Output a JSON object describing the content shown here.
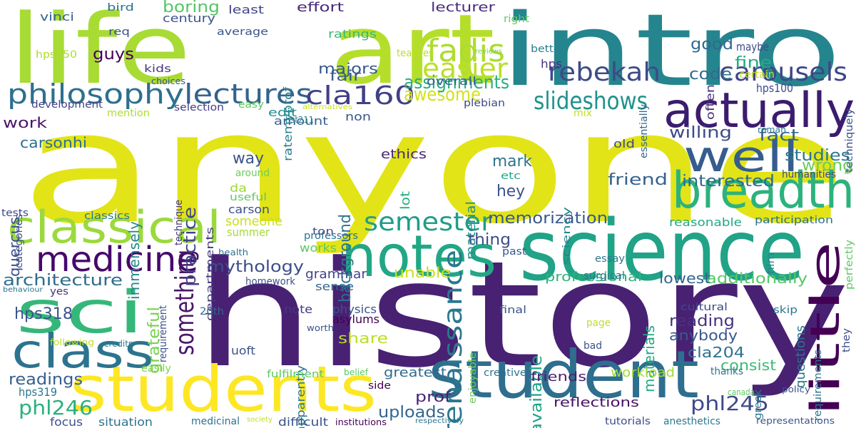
{
  "word_cloud": {
    "words": [
      {
        "text": "anyone",
        "color": "#e2e418"
      },
      {
        "text": "history",
        "color": "#482173"
      },
      {
        "text": "intro",
        "color": "#25858e"
      },
      {
        "text": "art",
        "color": "#b5de2b"
      },
      {
        "text": "life",
        "color": "#a8db34"
      },
      {
        "text": "science",
        "color": "#20a386"
      },
      {
        "text": "student",
        "color": "#2e6e8e"
      },
      {
        "text": "students",
        "color": "#fde725"
      },
      {
        "text": "sci",
        "color": "#35b779"
      },
      {
        "text": "notes",
        "color": "#22a785"
      },
      {
        "text": "classical",
        "color": "#9bd93c"
      },
      {
        "text": "actually",
        "color": "#3b1c6e"
      },
      {
        "text": "breadth",
        "color": "#2db27d"
      },
      {
        "text": "class",
        "color": "#2c738e"
      },
      {
        "text": "well",
        "color": "#365d8d"
      },
      {
        "text": "little",
        "color": "#440154"
      },
      {
        "text": "medicine",
        "color": "#46086b"
      },
      {
        "text": "philosophy",
        "color": "#2d708e"
      },
      {
        "text": "lectures",
        "color": "#33638d"
      },
      {
        "text": "cla160",
        "color": "#424086"
      },
      {
        "text": "renaissance",
        "color": "#2a788e"
      },
      {
        "text": "fadis",
        "color": "#addc30"
      },
      {
        "text": "easier",
        "color": "#bddf26"
      },
      {
        "text": "rebekah",
        "color": "#3e4a89"
      },
      {
        "text": "carousels",
        "color": "#3f4788"
      },
      {
        "text": "slideshows",
        "color": "#20928c"
      },
      {
        "text": "semester",
        "color": "#1f9e89"
      },
      {
        "text": "something",
        "color": "#481769"
      },
      {
        "text": "awesome",
        "color": "#d2e21b"
      },
      {
        "text": "assignments",
        "color": "#29af7f"
      },
      {
        "text": "phl246",
        "color": "#2ab07f"
      },
      {
        "text": "phl245",
        "color": "#3e4989"
      },
      {
        "text": "hps318",
        "color": "#3a548c"
      },
      {
        "text": "readings",
        "color": "#355f8d"
      },
      {
        "text": "architecture",
        "color": "#2e6d8e"
      },
      {
        "text": "mythology",
        "color": "#3d4e8a"
      },
      {
        "text": "practice",
        "color": "#414487"
      },
      {
        "text": "grateful",
        "color": "#7ad151"
      },
      {
        "text": "background",
        "color": "#2c728e"
      },
      {
        "text": "memorization",
        "color": "#38598c"
      },
      {
        "text": "studies",
        "color": "#2b758e"
      },
      {
        "text": "interested",
        "color": "#31688e"
      },
      {
        "text": "wrong",
        "color": "#6ccd5a"
      },
      {
        "text": "friend",
        "color": "#33628d"
      },
      {
        "text": "willing",
        "color": "#3e4c8a"
      },
      {
        "text": "fact",
        "color": "#33638d"
      },
      {
        "text": "good",
        "color": "#31688e"
      },
      {
        "text": "fine",
        "color": "#25ac82"
      },
      {
        "text": "code",
        "color": "#2f6c8e"
      },
      {
        "text": "mark",
        "color": "#2b748e"
      },
      {
        "text": "hey",
        "color": "#3b528b"
      },
      {
        "text": "fair",
        "color": "#355e8d"
      },
      {
        "text": "majors",
        "color": "#38588c"
      },
      {
        "text": "guys",
        "color": "#440154"
      },
      {
        "text": "boring",
        "color": "#54c568"
      },
      {
        "text": "work",
        "color": "#481668"
      },
      {
        "text": "carsonhi",
        "color": "#2d708e"
      },
      {
        "text": "quercus",
        "color": "#3d4d8a"
      },
      {
        "text": "immensely",
        "color": "#24878e"
      },
      {
        "text": "way",
        "color": "#3b528b"
      },
      {
        "text": "thing",
        "color": "#3e4c8a"
      },
      {
        "text": "unable",
        "color": "#cae11f"
      },
      {
        "text": "share",
        "color": "#bade28"
      },
      {
        "text": "reading",
        "color": "#46337f"
      },
      {
        "text": "anybody",
        "color": "#38588c"
      },
      {
        "text": "available",
        "color": "#1fa188"
      },
      {
        "text": "materials",
        "color": "#22a884"
      },
      {
        "text": "additionally",
        "color": "#56c667"
      },
      {
        "text": "lowest",
        "color": "#32658e"
      },
      {
        "text": "professional",
        "color": "#2db27d"
      },
      {
        "text": "cla204",
        "color": "#2c728e"
      },
      {
        "text": "consist",
        "color": "#3aba76"
      },
      {
        "text": "questions",
        "color": "#2a768e"
      },
      {
        "text": "uploads",
        "color": "#31668e"
      },
      {
        "text": "prof",
        "color": "#482374"
      },
      {
        "text": "greatest",
        "color": "#2f6c8e"
      },
      {
        "text": "reflections",
        "color": "#471164"
      },
      {
        "text": "workload",
        "color": "#a2da37"
      },
      {
        "text": "friends",
        "color": "#481d6f"
      },
      {
        "text": "ethics",
        "color": "#482878"
      },
      {
        "text": "material",
        "color": "#228c8d"
      },
      {
        "text": "lot",
        "color": "#25ac82"
      },
      {
        "text": "ratings",
        "color": "#38b977"
      },
      {
        "text": "overall",
        "color": "#34608d"
      },
      {
        "text": "non",
        "color": "#3b528b"
      },
      {
        "text": "edit",
        "color": "#228d8d"
      },
      {
        "text": "amount",
        "color": "#35608d"
      },
      {
        "text": "plebian",
        "color": "#3e4a89"
      },
      {
        "text": "effort",
        "color": "#482979"
      },
      {
        "text": "lecturer",
        "color": "#472d7b"
      },
      {
        "text": "century",
        "color": "#3a548c"
      },
      {
        "text": "least",
        "color": "#404688"
      },
      {
        "text": "average",
        "color": "#39558c"
      },
      {
        "text": "ratemyprof",
        "color": "#26818e"
      },
      {
        "text": "vinci",
        "color": "#33638d"
      },
      {
        "text": "bird",
        "color": "#2d708e"
      },
      {
        "text": "req",
        "color": "#3b528b"
      },
      {
        "text": "hps250",
        "color": "#addc30"
      },
      {
        "text": "kids",
        "color": "#453882"
      },
      {
        "text": "choices",
        "color": "#3b528b"
      },
      {
        "text": "development",
        "color": "#414487"
      },
      {
        "text": "mention",
        "color": "#addc30"
      },
      {
        "text": "selection",
        "color": "#423f85"
      },
      {
        "text": "easy",
        "color": "#5ec962"
      },
      {
        "text": "alternatives",
        "color": "#cde11d"
      },
      {
        "text": "teaches",
        "color": "#bddf26"
      },
      {
        "text": "reviews",
        "color": "#7fd34e"
      },
      {
        "text": "better",
        "color": "#26818e"
      },
      {
        "text": "right",
        "color": "#5ec962"
      },
      {
        "text": "hps",
        "color": "#46337f"
      },
      {
        "text": "maybe",
        "color": "#3e4c8a"
      },
      {
        "text": "often",
        "color": "#472d7b"
      },
      {
        "text": "essentially",
        "color": "#31688e"
      },
      {
        "text": "hps100",
        "color": "#3e4a89"
      },
      {
        "text": "certain",
        "color": "#c2df23"
      },
      {
        "text": "techniquely",
        "color": "#3a548c"
      },
      {
        "text": "roman",
        "color": "#2a788e"
      },
      {
        "text": "old",
        "color": "#3e4989"
      },
      {
        "text": "mix",
        "color": "#bddf26"
      },
      {
        "text": "etc",
        "color": "#22a884"
      },
      {
        "text": "sciency",
        "color": "#25848e"
      },
      {
        "text": "humanities",
        "color": "#3f4889"
      },
      {
        "text": "hst211",
        "color": "#26828e"
      },
      {
        "text": "carson",
        "color": "#3d4e8a"
      },
      {
        "text": "da",
        "color": "#9bd93c"
      },
      {
        "text": "useful",
        "color": "#5ec962"
      },
      {
        "text": "someone",
        "color": "#c8e020"
      },
      {
        "text": "summer",
        "color": "#a5db36"
      },
      {
        "text": "around",
        "color": "#6ccd5a"
      },
      {
        "text": "departments",
        "color": "#453781"
      },
      {
        "text": "technique",
        "color": "#453882"
      },
      {
        "text": "categories",
        "color": "#3b528b"
      },
      {
        "text": "tests",
        "color": "#3e4c8a"
      },
      {
        "text": "classics",
        "color": "#2a788e"
      },
      {
        "text": "ton",
        "color": "#3e4c8a"
      },
      {
        "text": "works",
        "color": "#5ec962"
      },
      {
        "text": "professors",
        "color": "#2d708e"
      },
      {
        "text": "reasonable",
        "color": "#22a884"
      },
      {
        "text": "participation",
        "color": "#2c728e"
      },
      {
        "text": "representations",
        "color": "#3b528b"
      },
      {
        "text": "requirements",
        "color": "#2c728e"
      },
      {
        "text": "they",
        "color": "#3e4c8a"
      },
      {
        "text": "perfectly",
        "color": "#5ec962"
      },
      {
        "text": "film",
        "color": "#25848e"
      },
      {
        "text": "essay",
        "color": "#2a788e"
      },
      {
        "text": "surgical",
        "color": "#2a788e"
      },
      {
        "text": "past",
        "color": "#39558c"
      },
      {
        "text": "health",
        "color": "#2c728e"
      },
      {
        "text": "behaviour",
        "color": "#2c728e"
      },
      {
        "text": "yes",
        "color": "#46337f"
      },
      {
        "text": "homework",
        "color": "#3b528b"
      },
      {
        "text": "requirement",
        "color": "#3b528b"
      },
      {
        "text": "20th",
        "color": "#31688e"
      },
      {
        "text": "grammar",
        "color": "#414487"
      },
      {
        "text": "sense",
        "color": "#31688e"
      },
      {
        "text": "note",
        "color": "#453882"
      },
      {
        "text": "physics",
        "color": "#3b528b"
      },
      {
        "text": "asylums",
        "color": "#440154"
      },
      {
        "text": "apparently",
        "color": "#2a788e"
      },
      {
        "text": "enjoyable",
        "color": "#6ccd5a"
      },
      {
        "text": "final",
        "color": "#3b528b"
      },
      {
        "text": "page",
        "color": "#bddf26"
      },
      {
        "text": "bad",
        "color": "#3b528b"
      },
      {
        "text": "cultural",
        "color": "#3e4a89"
      },
      {
        "text": "skip",
        "color": "#2a788e"
      },
      {
        "text": "greek",
        "color": "#2a788e"
      },
      {
        "text": "worth",
        "color": "#3b528b"
      },
      {
        "text": "following",
        "color": "#bddf26"
      },
      {
        "text": "credits",
        "color": "#2a788e"
      },
      {
        "text": "uoft",
        "color": "#3b528b"
      },
      {
        "text": "hps319",
        "color": "#2a788e"
      },
      {
        "text": "easily",
        "color": "#7fd34e"
      },
      {
        "text": "fulfilment",
        "color": "#5ec962"
      },
      {
        "text": "belief",
        "color": "#5ec962"
      },
      {
        "text": "side",
        "color": "#440154"
      },
      {
        "text": "creative",
        "color": "#2c728e"
      },
      {
        "text": "thanks",
        "color": "#2c728e"
      },
      {
        "text": "policy",
        "color": "#3b528b"
      },
      {
        "text": "canada",
        "color": "#5ec962"
      },
      {
        "text": "focus",
        "color": "#3b528b"
      },
      {
        "text": "situation",
        "color": "#2c728e"
      },
      {
        "text": "medicinal",
        "color": "#2c728e"
      },
      {
        "text": "society",
        "color": "#bddf26"
      },
      {
        "text": "difficult",
        "color": "#3b528b"
      },
      {
        "text": "institutions",
        "color": "#440154"
      },
      {
        "text": "respectively",
        "color": "#2c728e"
      },
      {
        "text": "tutorials",
        "color": "#3e4c8a"
      },
      {
        "text": "anesthetics",
        "color": "#2a788e"
      }
    ]
  }
}
